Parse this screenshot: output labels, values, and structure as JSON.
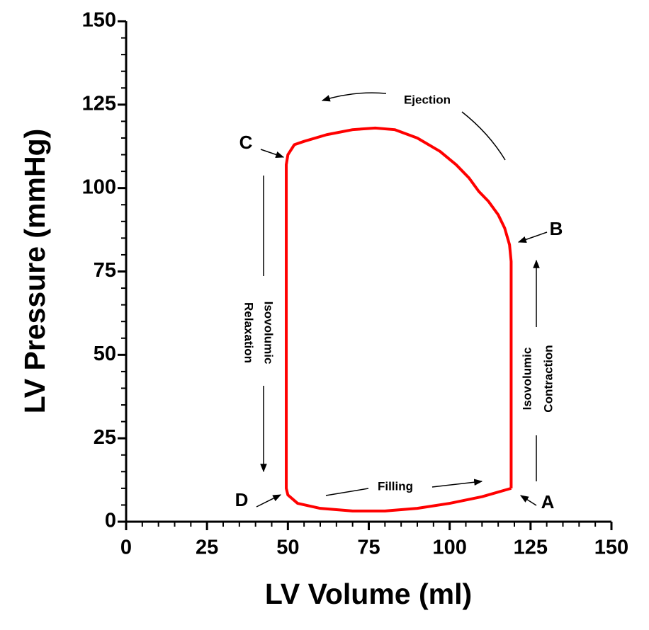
{
  "chart_data": {
    "type": "line",
    "x_label": "LV Volume (ml)",
    "y_label": "LV Pressure (mmHg)",
    "x": [
      119,
      119,
      118.5,
      117,
      115,
      112,
      109,
      106,
      102,
      97,
      90,
      83,
      77,
      70,
      62,
      55,
      52,
      50,
      49.5,
      49.5,
      50,
      53,
      60,
      70,
      80,
      90,
      100,
      110,
      119
    ],
    "values": [
      10,
      78,
      83,
      88,
      92,
      96,
      99,
      103,
      107,
      111,
      115,
      117.5,
      118,
      117.5,
      116,
      114,
      113,
      110,
      107,
      10,
      8,
      5.5,
      4,
      3.2,
      3.2,
      4,
      5.5,
      7.5,
      10
    ],
    "color": "#ff0000",
    "xlim": [
      0,
      150
    ],
    "ylim": [
      0,
      150
    ],
    "xticks": [
      0,
      25,
      50,
      75,
      100,
      125,
      150
    ],
    "yticks": [
      0,
      25,
      50,
      75,
      100,
      125,
      150
    ],
    "minor_ticks": true,
    "annotations": [
      "A",
      "B",
      "C",
      "D",
      "Ejection",
      "Filling",
      "Isovolumic",
      "Contraction",
      "Isovolumic",
      "Relaxation"
    ]
  }
}
